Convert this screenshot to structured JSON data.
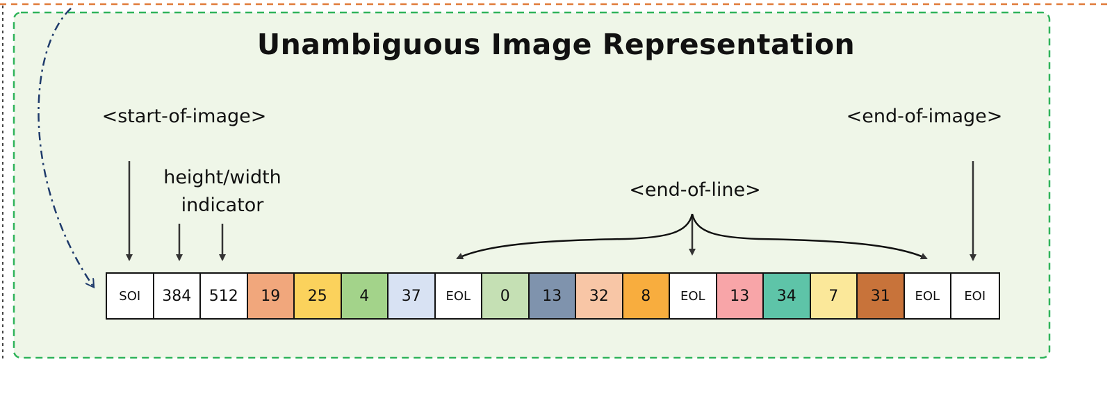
{
  "title": "Unambiguous Image Representation",
  "labels": {
    "start_of_image": "<start-of-image>",
    "end_of_image": "<end-of-image>",
    "height_width": "height/width indicator",
    "end_of_line": "<end-of-line>"
  },
  "colors": {
    "outer_border": "#e07b3a",
    "panel_border": "#2fb35a",
    "panel_fill": "#eff6e8",
    "curved_arrow": "#1e3a6b",
    "arrow": "#333333"
  },
  "tokens": [
    {
      "text": "SOI",
      "color": "#ffffff",
      "special": true
    },
    {
      "text": "384",
      "color": "#ffffff",
      "special": false
    },
    {
      "text": "512",
      "color": "#ffffff",
      "special": false
    },
    {
      "text": "19",
      "color": "#f1a77c",
      "special": false
    },
    {
      "text": "25",
      "color": "#fbd25c",
      "special": false
    },
    {
      "text": "4",
      "color": "#a3d38a",
      "special": false
    },
    {
      "text": "37",
      "color": "#d8e2f3",
      "special": false
    },
    {
      "text": "EOL",
      "color": "#ffffff",
      "special": true
    },
    {
      "text": "0",
      "color": "#c5e0b4",
      "special": false
    },
    {
      "text": "13",
      "color": "#7f93ad",
      "special": false
    },
    {
      "text": "32",
      "color": "#f8c6a6",
      "special": false
    },
    {
      "text": "8",
      "color": "#f8ad3e",
      "special": false
    },
    {
      "text": "EOL",
      "color": "#ffffff",
      "special": true
    },
    {
      "text": "13",
      "color": "#f8a5a8",
      "special": false
    },
    {
      "text": "34",
      "color": "#5ec4a8",
      "special": false
    },
    {
      "text": "7",
      "color": "#fbe89a",
      "special": false
    },
    {
      "text": "31",
      "color": "#c8733a",
      "special": false
    },
    {
      "text": "EOL",
      "color": "#ffffff",
      "special": true
    },
    {
      "text": "EOI",
      "color": "#ffffff",
      "special": true
    }
  ]
}
